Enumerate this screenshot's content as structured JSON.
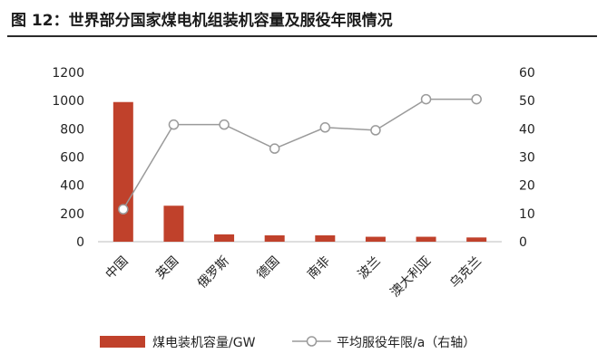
{
  "title": "图 12：世界部分国家煤电机组装机容量及服役年限情况",
  "colors": {
    "bar": "#c0412b",
    "line": "#9a9a9a",
    "marker_fill": "#ffffff",
    "axis": "#bdbdbd"
  },
  "chart_data": {
    "type": "bar",
    "categories": [
      "中国",
      "英国",
      "俄罗斯",
      "德国",
      "南非",
      "波兰",
      "澳大利亚",
      "乌克兰"
    ],
    "series": [
      {
        "name": "煤电装机容量/GW",
        "type": "bar",
        "axis": "left",
        "values": [
          990,
          255,
          52,
          45,
          45,
          35,
          35,
          30
        ]
      },
      {
        "name": "平均服役年限/a（右轴）",
        "type": "line",
        "axis": "right",
        "values": [
          11.5,
          41.5,
          41.5,
          33,
          40.5,
          39.5,
          50.5,
          50.5
        ]
      }
    ],
    "ylim_left": [
      0,
      1200
    ],
    "ylim_right": [
      0,
      60
    ],
    "yticks_left": [
      "0",
      "200",
      "400",
      "600",
      "800",
      "1000",
      "1200"
    ],
    "yticks_right": [
      "0",
      "10",
      "20",
      "30",
      "40",
      "50",
      "60"
    ],
    "legend_position": "bottom",
    "grid": false
  }
}
